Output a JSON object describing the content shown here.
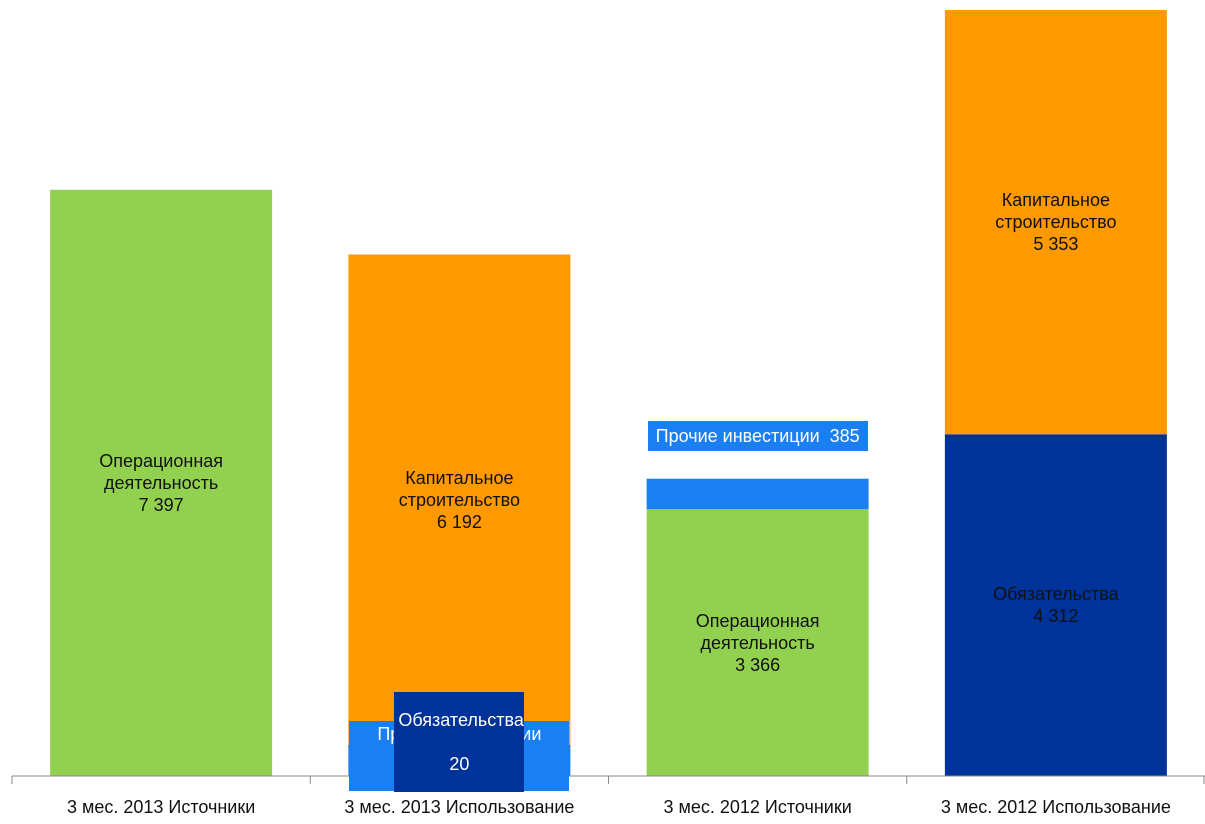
{
  "chart_data": {
    "type": "stacked_bar",
    "categories": [
      "3 мес. 2013 Источники",
      "3 мес. 2013 Использование",
      "3 мес. 2012 Источники",
      "3 мес. 2012 Использование"
    ],
    "series": [
      {
        "name": "Операционная деятельность",
        "color": "#92d050",
        "values": [
          7397,
          null,
          3366,
          null
        ],
        "value_labels": [
          "7 397",
          null,
          "3 366",
          null
        ]
      },
      {
        "name": "Прочие инвестиции",
        "color": "#1a7ff2",
        "values": [
          null,
          368,
          385,
          null
        ],
        "value_labels": [
          null,
          "368",
          "385",
          null
        ]
      },
      {
        "name": "Обязательства",
        "color": "#003399",
        "values": [
          null,
          20,
          null,
          4312
        ],
        "value_labels": [
          null,
          "20",
          null,
          "4 312"
        ]
      },
      {
        "name": "Капитальное строительство",
        "color": "#ff9900",
        "values": [
          null,
          6192,
          null,
          5353
        ],
        "value_labels": [
          null,
          "6 192",
          null,
          "5 353"
        ]
      }
    ]
  }
}
